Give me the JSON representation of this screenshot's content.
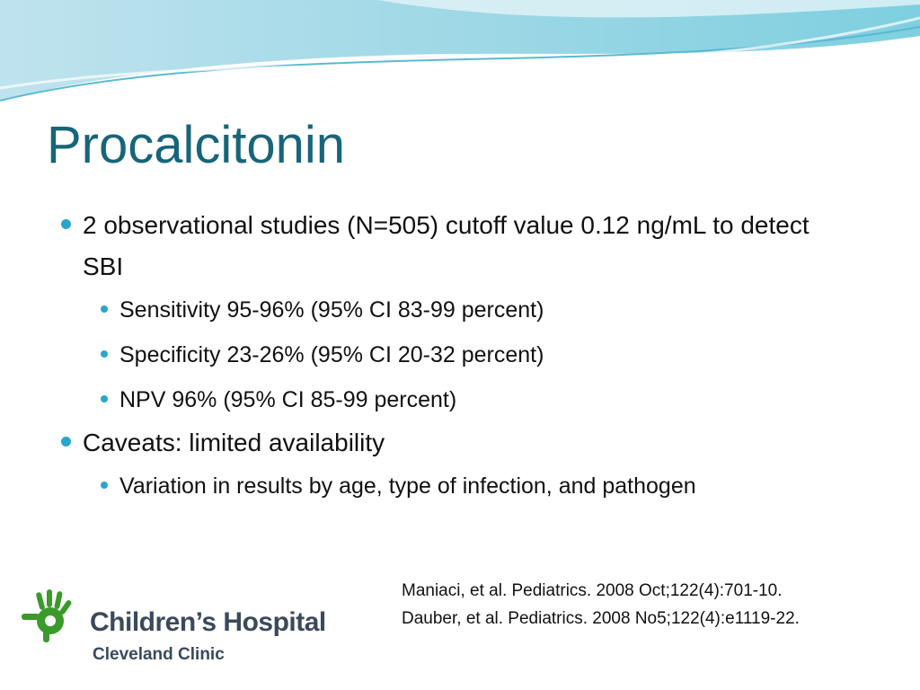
{
  "title": "Procalcitonin",
  "bullets": [
    {
      "text": "2 observational studies (N=505) cutoff value 0.12 ng/mL to detect SBI",
      "sub": [
        "Sensitivity 95-96% (95% CI 83-99 percent)",
        "Specificity 23-26% (95% CI 20-32 percent)",
        "NPV 96% (95% CI 85-99 percent)"
      ]
    },
    {
      "text": "Caveats: limited availability",
      "sub": [
        "Variation in results by age, type of infection, and pathogen"
      ]
    }
  ],
  "references": [
    "Maniaci, et al. Pediatrics. 2008 Oct;122(4):701-10.",
    "Dauber, et al. Pediatrics. 2008 No5;122(4):e1119-22."
  ],
  "logo": {
    "name": "Children’s Hospital",
    "subtitle": "Cleveland Clinic"
  }
}
